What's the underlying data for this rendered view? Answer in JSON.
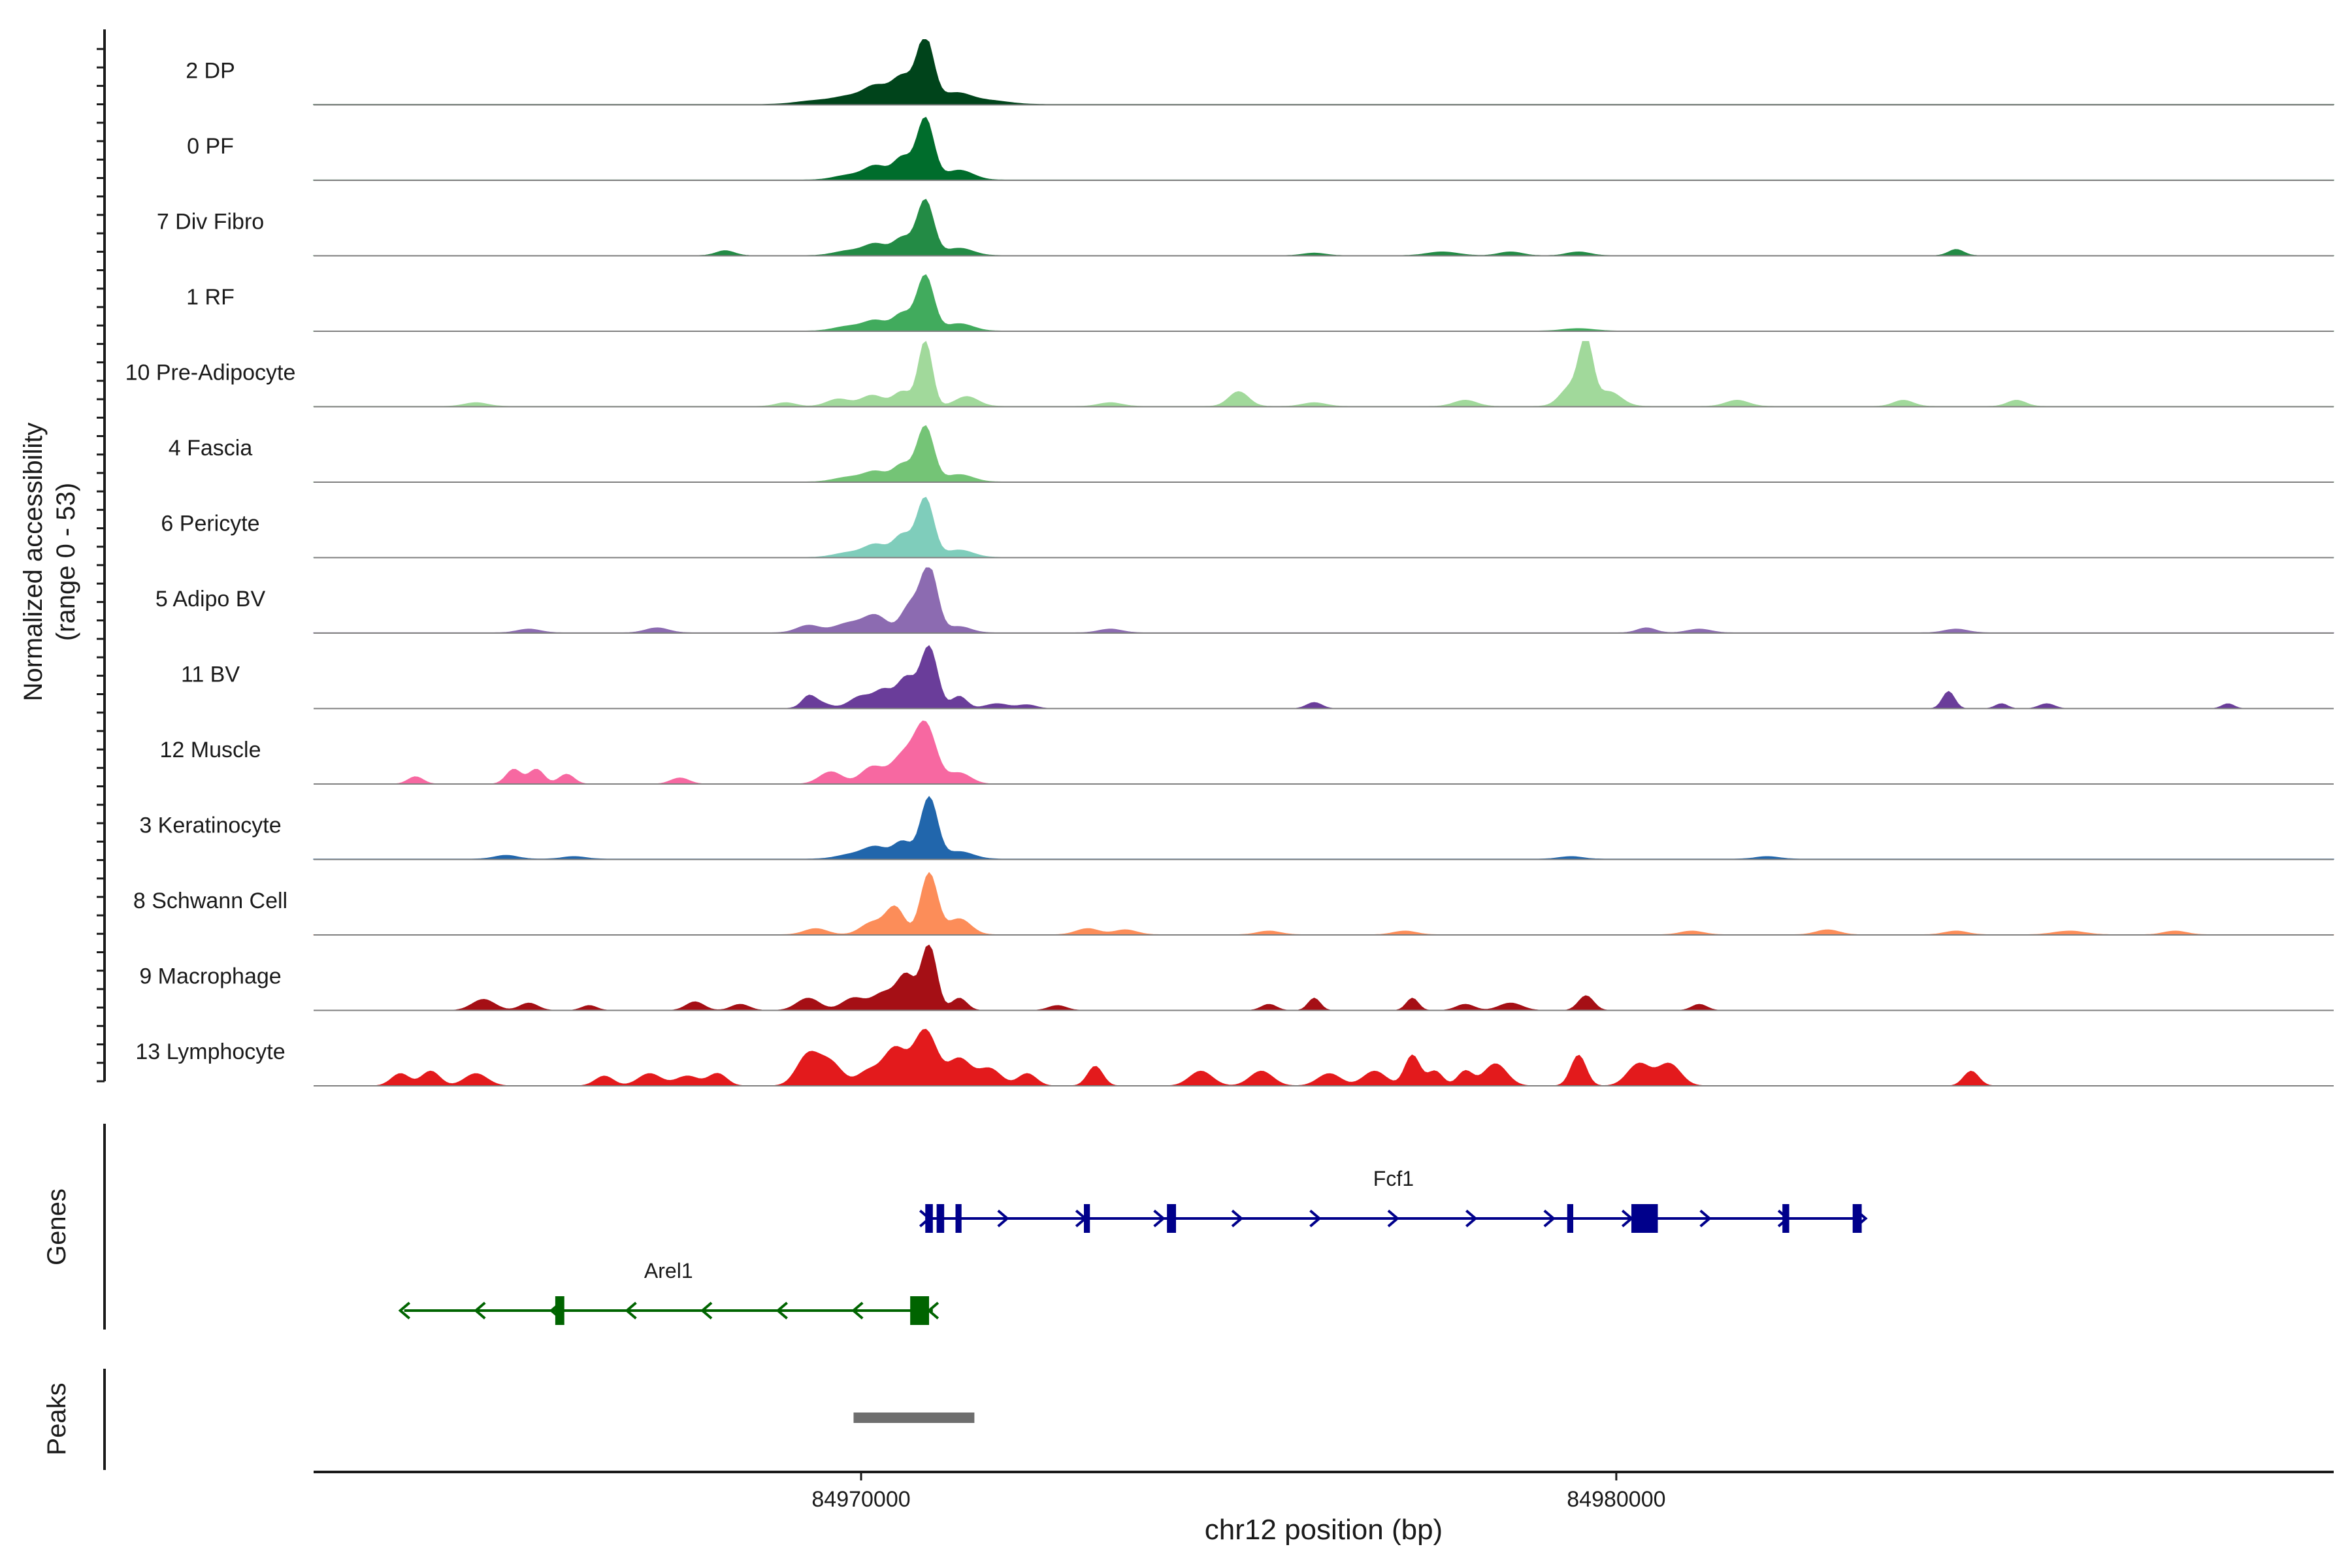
{
  "chart_data": {
    "type": "area",
    "ylabel": "Normalized accessibility",
    "ylabel_range": "(range 0 - 53)",
    "ylim": [
      0,
      53
    ],
    "xlabel": "chr12 position (bp)",
    "xlim": [
      84962750,
      84989500
    ],
    "xticks": [
      84970000,
      84980000
    ],
    "xtick_labels": [
      "84970000",
      "84980000"
    ],
    "tracks": [
      {
        "name": "2 DP",
        "color": "#00441b",
        "base": 0.4,
        "peaks": [
          [
            84970850,
            53,
            110
          ],
          [
            84970550,
            22,
            140
          ],
          [
            84970200,
            14,
            160
          ],
          [
            84969850,
            6,
            200
          ],
          [
            84971250,
            9,
            200
          ],
          [
            84969400,
            3,
            250
          ],
          [
            84971700,
            3,
            250
          ]
        ]
      },
      {
        "name": "0 PF",
        "color": "#006d2c",
        "base": 0.3,
        "peaks": [
          [
            84970850,
            50,
            110
          ],
          [
            84970550,
            18,
            120
          ],
          [
            84970200,
            11,
            150
          ],
          [
            84969850,
            4,
            200
          ],
          [
            84971300,
            8,
            180
          ]
        ]
      },
      {
        "name": "7 Div Fibro",
        "color": "#238b45",
        "base": 0.2,
        "peaks": [
          [
            84970850,
            45,
            110
          ],
          [
            84970550,
            14,
            120
          ],
          [
            84970200,
            9,
            150
          ],
          [
            84969850,
            4,
            200
          ],
          [
            84971300,
            6,
            180
          ],
          [
            84968200,
            4,
            120
          ],
          [
            84977700,
            3,
            200
          ],
          [
            84978600,
            3,
            150
          ],
          [
            84979500,
            3,
            150
          ],
          [
            84984500,
            5,
            100
          ],
          [
            84976000,
            2,
            150
          ]
        ]
      },
      {
        "name": "1 RF",
        "color": "#41ab5d",
        "base": 0.2,
        "peaks": [
          [
            84970850,
            45,
            110
          ],
          [
            84970550,
            14,
            120
          ],
          [
            84970200,
            8,
            150
          ],
          [
            84969850,
            4,
            200
          ],
          [
            84971300,
            6,
            180
          ],
          [
            84979500,
            2,
            200
          ]
        ]
      },
      {
        "name": "10 Pre-Adipocyte",
        "color": "#a1d99b",
        "base": 0.3,
        "peaks": [
          [
            84970850,
            53,
            90
          ],
          [
            84970550,
            12,
            120
          ],
          [
            84970150,
            9,
            150
          ],
          [
            84969700,
            6,
            150
          ],
          [
            84971400,
            8,
            150
          ],
          [
            84979600,
            50,
            90
          ],
          [
            84979400,
            16,
            140
          ],
          [
            84979900,
            12,
            160
          ],
          [
            84975000,
            12,
            130
          ],
          [
            84978000,
            5,
            150
          ],
          [
            84981600,
            5,
            150
          ],
          [
            84983800,
            5,
            130
          ],
          [
            84985300,
            5,
            120
          ],
          [
            84973300,
            3,
            150
          ],
          [
            84969000,
            3,
            130
          ],
          [
            84964900,
            3,
            150
          ],
          [
            84976000,
            3,
            150
          ]
        ]
      },
      {
        "name": "4 Fascia",
        "color": "#74c476",
        "base": 0.2,
        "peaks": [
          [
            84970850,
            45,
            110
          ],
          [
            84970550,
            14,
            120
          ],
          [
            84970200,
            8,
            150
          ],
          [
            84969850,
            4,
            200
          ],
          [
            84971300,
            6,
            180
          ]
        ]
      },
      {
        "name": "6 Pericyte",
        "color": "#7fcdbb",
        "base": 0.2,
        "peaks": [
          [
            84970850,
            48,
            110
          ],
          [
            84970550,
            18,
            120
          ],
          [
            84970200,
            10,
            150
          ],
          [
            84969850,
            4,
            200
          ],
          [
            84971300,
            6,
            180
          ]
        ]
      },
      {
        "name": "5 Adipo BV",
        "color": "#8c6bb1",
        "base": 0.3,
        "peaks": [
          [
            84970900,
            53,
            110
          ],
          [
            84970650,
            22,
            120
          ],
          [
            84970200,
            13,
            150
          ],
          [
            84969850,
            8,
            200
          ],
          [
            84969300,
            6,
            150
          ],
          [
            84971300,
            5,
            150
          ],
          [
            84967300,
            4,
            150
          ],
          [
            84965600,
            3,
            150
          ],
          [
            84980400,
            4,
            120
          ],
          [
            84981100,
            3,
            150
          ],
          [
            84984500,
            3,
            150
          ],
          [
            84973300,
            3,
            150
          ]
        ]
      },
      {
        "name": "11 BV",
        "color": "#6a3d9a",
        "base": 0.0,
        "peaks": [
          [
            84970900,
            50,
            110
          ],
          [
            84970600,
            25,
            120
          ],
          [
            84970300,
            14,
            120
          ],
          [
            84970000,
            10,
            150
          ],
          [
            84969400,
            6,
            150
          ],
          [
            84971300,
            10,
            100
          ],
          [
            84971800,
            4,
            150
          ],
          [
            84969300,
            6,
            80
          ],
          [
            84976000,
            5,
            100
          ],
          [
            84984400,
            14,
            80
          ],
          [
            84985100,
            4,
            80
          ],
          [
            84985700,
            4,
            100
          ],
          [
            84988100,
            4,
            80
          ],
          [
            84972200,
            3,
            120
          ]
        ]
      },
      {
        "name": "12 Muscle",
        "color": "#f768a1",
        "base": 0.0,
        "peaks": [
          [
            84970850,
            48,
            140
          ],
          [
            84970550,
            22,
            150
          ],
          [
            84970150,
            14,
            150
          ],
          [
            84969600,
            10,
            150
          ],
          [
            84971300,
            9,
            150
          ],
          [
            84965400,
            12,
            100
          ],
          [
            84965700,
            12,
            100
          ],
          [
            84966100,
            8,
            100
          ],
          [
            84964100,
            6,
            100
          ],
          [
            84967600,
            5,
            120
          ]
        ]
      },
      {
        "name": "3 Keratinocyte",
        "color": "#2166ac",
        "base": 0.4,
        "peaks": [
          [
            84970900,
            50,
            110
          ],
          [
            84970550,
            14,
            120
          ],
          [
            84970200,
            9,
            150
          ],
          [
            84969900,
            4,
            200
          ],
          [
            84971300,
            6,
            180
          ],
          [
            84965300,
            3,
            150
          ],
          [
            84966200,
            2,
            150
          ],
          [
            84979400,
            2,
            150
          ],
          [
            84982000,
            2,
            150
          ]
        ]
      },
      {
        "name": "8 Schwann Cell",
        "color": "#fc8d59",
        "base": 0.2,
        "peaks": [
          [
            84970900,
            50,
            110
          ],
          [
            84970450,
            22,
            120
          ],
          [
            84970150,
            10,
            150
          ],
          [
            84971300,
            13,
            150
          ],
          [
            84969400,
            5,
            150
          ],
          [
            84973000,
            5,
            150
          ],
          [
            84973500,
            4,
            150
          ],
          [
            84975400,
            3,
            150
          ],
          [
            84977200,
            3,
            150
          ],
          [
            84981000,
            3,
            150
          ],
          [
            84982800,
            4,
            150
          ],
          [
            84984500,
            3,
            150
          ],
          [
            84986000,
            3,
            200
          ],
          [
            84987400,
            3,
            150
          ]
        ]
      },
      {
        "name": "9 Macrophage",
        "color": "#a50f15",
        "base": 0.0,
        "peaks": [
          [
            84970900,
            53,
            100
          ],
          [
            84970600,
            28,
            120
          ],
          [
            84970300,
            14,
            150
          ],
          [
            84969900,
            10,
            150
          ],
          [
            84969300,
            10,
            150
          ],
          [
            84971300,
            10,
            100
          ],
          [
            84965000,
            9,
            150
          ],
          [
            84965600,
            6,
            120
          ],
          [
            84967800,
            7,
            120
          ],
          [
            84968400,
            5,
            120
          ],
          [
            84972600,
            4,
            120
          ],
          [
            84976000,
            10,
            80
          ],
          [
            84975400,
            5,
            100
          ],
          [
            84977300,
            10,
            80
          ],
          [
            84978000,
            5,
            120
          ],
          [
            84978600,
            6,
            150
          ],
          [
            84979600,
            12,
            100
          ],
          [
            84981100,
            5,
            100
          ],
          [
            84966400,
            4,
            100
          ]
        ]
      },
      {
        "name": "13 Lymphocyte",
        "color": "#e31a1c",
        "base": 0.0,
        "peaks": [
          [
            84970850,
            45,
            150
          ],
          [
            84971300,
            22,
            150
          ],
          [
            84970450,
            30,
            150
          ],
          [
            84969300,
            25,
            150
          ],
          [
            84969600,
            18,
            150
          ],
          [
            84970100,
            12,
            150
          ],
          [
            84971700,
            14,
            150
          ],
          [
            84972200,
            10,
            120
          ],
          [
            84973100,
            16,
            100
          ],
          [
            84974500,
            12,
            150
          ],
          [
            84975300,
            12,
            150
          ],
          [
            84976200,
            10,
            150
          ],
          [
            84976800,
            12,
            150
          ],
          [
            84977300,
            25,
            100
          ],
          [
            84977600,
            12,
            100
          ],
          [
            84978000,
            12,
            100
          ],
          [
            84978400,
            18,
            150
          ],
          [
            84979500,
            25,
            100
          ],
          [
            84980300,
            18,
            150
          ],
          [
            84980700,
            18,
            150
          ],
          [
            84984700,
            12,
            100
          ],
          [
            84963900,
            10,
            120
          ],
          [
            84964300,
            12,
            120
          ],
          [
            84964900,
            10,
            150
          ],
          [
            84967200,
            10,
            150
          ],
          [
            84967700,
            8,
            150
          ],
          [
            84966600,
            8,
            120
          ],
          [
            84968100,
            10,
            120
          ]
        ]
      }
    ],
    "genes": [
      {
        "name": "Fcf1",
        "color": "#00008b",
        "strand": "+",
        "start": 84970850,
        "end": 84983250,
        "row": 0,
        "exons": [
          [
            84970850,
            84970950
          ],
          [
            84971000,
            84971100
          ],
          [
            84971250,
            84971330
          ],
          [
            84972950,
            84973030
          ],
          [
            84974050,
            84974170
          ],
          [
            84979350,
            84979430
          ],
          [
            84980200,
            84980550
          ],
          [
            84982200,
            84982290
          ],
          [
            84983130,
            84983250
          ]
        ]
      },
      {
        "name": "Arel1",
        "color": "#006400",
        "strand": "-",
        "start": 84963950,
        "end": 84970950,
        "row": 1,
        "exons": [
          [
            84965950,
            84966070
          ],
          [
            84970650,
            84970900
          ]
        ]
      }
    ],
    "peaks": [
      {
        "start": 84969900,
        "end": 84971500
      }
    ],
    "panel_labels": {
      "genes": "Genes",
      "peaks": "Peaks"
    }
  }
}
